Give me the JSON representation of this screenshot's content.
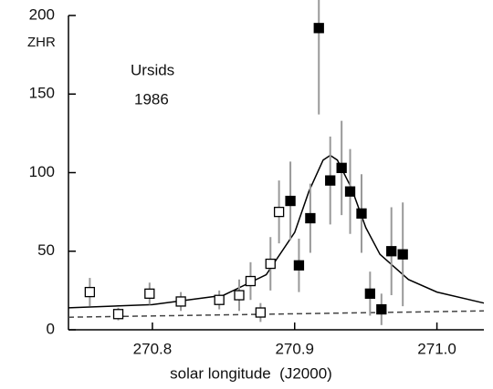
{
  "chart_data": {
    "type": "scatter",
    "y_label": "ZHR",
    "x_label": "solar longitude  (J2000)",
    "annotation": [
      "Ursids",
      "1986"
    ],
    "xlim": [
      270.741,
      271.033
    ],
    "ylim": [
      0,
      200
    ],
    "xticks": [
      270.8,
      270.9,
      {
        "value": 271.0,
        "label": "271.0"
      }
    ],
    "yticks": [
      0,
      50,
      100,
      150,
      200
    ],
    "series": [
      {
        "marker": "open",
        "color": "#000000",
        "x": [
          270.756,
          270.776,
          270.798,
          270.82,
          270.847,
          270.861,
          270.869,
          270.876,
          270.883,
          270.889
        ],
        "values": [
          24,
          10,
          23,
          18,
          19,
          22,
          31,
          11,
          42,
          75
        ],
        "errors": [
          9,
          4,
          7,
          6,
          6,
          10,
          12,
          6,
          17,
          20
        ]
      },
      {
        "marker": "filled",
        "color": "#000000",
        "x": [
          270.897,
          270.903,
          270.911,
          270.917,
          270.925,
          270.933,
          270.939,
          270.947,
          270.953,
          270.961,
          270.968,
          270.976
        ],
        "values": [
          82,
          41,
          71,
          192,
          95,
          103,
          88,
          74,
          23,
          13,
          50,
          48
        ],
        "errors": [
          25,
          17,
          22,
          55,
          28,
          30,
          27,
          25,
          14,
          10,
          28,
          33
        ]
      }
    ],
    "curves": [
      {
        "style": "solid",
        "color": "#000000",
        "x": [
          270.741,
          270.8,
          270.85,
          270.88,
          270.9,
          270.91,
          270.92,
          270.925,
          270.93,
          270.94,
          270.95,
          270.96,
          270.98,
          271.0,
          271.033
        ],
        "values": [
          14,
          16,
          22,
          35,
          62,
          88,
          108,
          111,
          108,
          90,
          65,
          48,
          32,
          24,
          17
        ]
      },
      {
        "style": "dashed",
        "color": "#444444",
        "x": [
          270.741,
          271.033
        ],
        "values": [
          8,
          12
        ]
      }
    ]
  }
}
